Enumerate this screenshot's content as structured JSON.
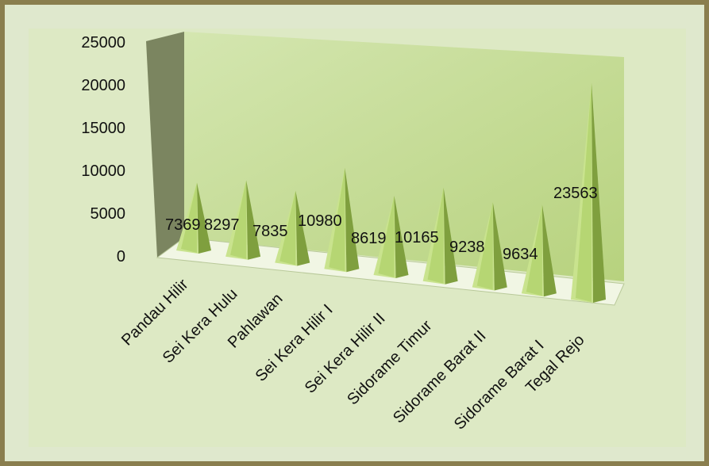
{
  "chart_data": {
    "type": "bar",
    "style": "3d-pyramid",
    "categories": [
      "Pandau Hilir",
      "Sei Kera Hulu",
      "Pahlawan",
      "Sei Kera Hilir I",
      "Sei Kera Hilir II",
      "Sidorame Timur",
      "Sidorame Barat II",
      "Sidorame Barat I",
      "Tegal Rejo"
    ],
    "values": [
      7369,
      8297,
      7835,
      10980,
      8619,
      10165,
      9238,
      9634,
      23563
    ],
    "data_labels": [
      "7369",
      "8297",
      "7835",
      "10980",
      "8619",
      "10165",
      "9238",
      "9634",
      "23563"
    ],
    "yticks": [
      "0",
      "5000",
      "10000",
      "15000",
      "20000",
      "25000"
    ],
    "ylim": [
      0,
      25000
    ],
    "title": "",
    "xlabel": "",
    "ylabel": "",
    "grid": false,
    "legend": "none",
    "colors": {
      "frame": "#8a7e4e",
      "background": "#dfe8cd",
      "back_wall": "#c6dc9c",
      "side_wall": "#7b8560",
      "floor": "#f1f6e4",
      "pyramid_light": "#c9e38e",
      "pyramid_mid": "#a6cc5c",
      "pyramid_dark": "#7f9f3e"
    }
  }
}
